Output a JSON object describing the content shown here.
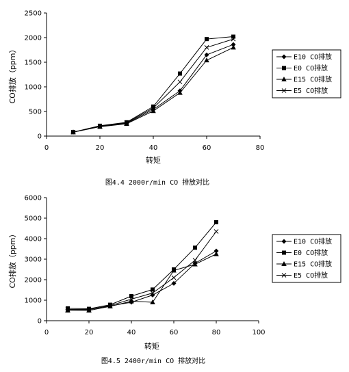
{
  "chart_data": [
    {
      "type": "line",
      "x": [
        10,
        20,
        30,
        40,
        50,
        60,
        70
      ],
      "xlim": [
        0,
        80
      ],
      "ylim": [
        0,
        2500
      ],
      "xticks": [
        "0",
        "20",
        "40",
        "60",
        "80"
      ],
      "yticks": [
        "0",
        "500",
        "1000",
        "1500",
        "2000",
        "2500"
      ],
      "xlabel": "转矩",
      "ylabel": "CO排放（ppm）",
      "caption": "图4.4 2000r/min CO 排放对比",
      "legend_position": "right",
      "series": [
        {
          "name": "E10 CO排放",
          "marker": "diamond",
          "values": [
            80,
            200,
            260,
            540,
            920,
            1650,
            1860
          ]
        },
        {
          "name": "E0 CO排放",
          "marker": "square",
          "values": [
            80,
            210,
            280,
            600,
            1270,
            1970,
            2020
          ]
        },
        {
          "name": "E15 CO排放",
          "marker": "triangle",
          "values": [
            80,
            190,
            250,
            510,
            880,
            1540,
            1800
          ]
        },
        {
          "name": "E5 CO排放",
          "marker": "x",
          "values": [
            80,
            200,
            270,
            570,
            1100,
            1800,
            1970
          ]
        }
      ]
    },
    {
      "type": "line",
      "x": [
        10,
        20,
        30,
        40,
        50,
        60,
        70,
        80
      ],
      "xlim": [
        0,
        100
      ],
      "ylim": [
        0,
        6000
      ],
      "xticks": [
        "0",
        "20",
        "40",
        "60",
        "80",
        "100"
      ],
      "yticks": [
        "0",
        "1000",
        "2000",
        "3000",
        "4000",
        "5000",
        "6000"
      ],
      "xlabel": "转矩",
      "ylabel": "CO排放（ppm）",
      "caption": "图4.5 2400r/min CO 排放对比",
      "legend_position": "right",
      "series": [
        {
          "name": "E10 CO排放",
          "marker": "diamond",
          "values": [
            550,
            550,
            720,
            900,
            1250,
            1820,
            2800,
            3400
          ]
        },
        {
          "name": "E0 CO排放",
          "marker": "square",
          "values": [
            600,
            580,
            780,
            1200,
            1520,
            2500,
            3560,
            4800
          ]
        },
        {
          "name": "E15 CO排放",
          "marker": "triangle",
          "values": [
            500,
            500,
            700,
            950,
            900,
            2450,
            2750,
            3250
          ]
        },
        {
          "name": "E5 CO排放",
          "marker": "x",
          "values": [
            550,
            540,
            740,
            1050,
            1350,
            2100,
            2950,
            4350
          ]
        }
      ]
    }
  ]
}
